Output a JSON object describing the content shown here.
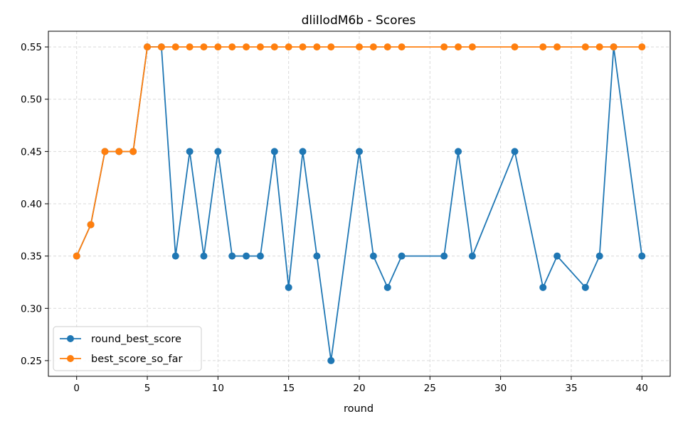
{
  "chart_data": {
    "type": "line",
    "title": "dliIlodM6b - Scores",
    "xlabel": "round",
    "ylabel": "",
    "xlim": [
      -2,
      42
    ],
    "ylim": [
      0.235,
      0.565
    ],
    "xticks": [
      0,
      5,
      10,
      15,
      20,
      25,
      30,
      35,
      40
    ],
    "yticks": [
      0.25,
      0.3,
      0.35,
      0.4,
      0.45,
      0.5,
      0.55
    ],
    "xtick_labels": [
      "0",
      "5",
      "10",
      "15",
      "20",
      "25",
      "30",
      "35",
      "40"
    ],
    "ytick_labels": [
      "0.25",
      "0.30",
      "0.35",
      "0.40",
      "0.45",
      "0.50",
      "0.55"
    ],
    "grid": true,
    "legend_position": "lower-left",
    "series": [
      {
        "name": "round_best_score",
        "color": "#1f77b4",
        "x": [
          0,
          1,
          2,
          3,
          4,
          5,
          6,
          7,
          8,
          9,
          10,
          11,
          12,
          13,
          14,
          15,
          16,
          17,
          18,
          20,
          21,
          22,
          23,
          26,
          27,
          28,
          31,
          33,
          34,
          36,
          37,
          38,
          40
        ],
        "y": [
          0.35,
          0.38,
          0.45,
          0.45,
          0.45,
          0.55,
          0.55,
          0.35,
          0.45,
          0.35,
          0.45,
          0.35,
          0.35,
          0.35,
          0.45,
          0.32,
          0.45,
          0.35,
          0.25,
          0.45,
          0.35,
          0.32,
          0.35,
          0.35,
          0.45,
          0.35,
          0.45,
          0.32,
          0.35,
          0.32,
          0.35,
          0.55,
          0.35
        ]
      },
      {
        "name": "best_score_so_far",
        "color": "#ff7f0e",
        "x": [
          0,
          1,
          2,
          3,
          4,
          5,
          6,
          7,
          8,
          9,
          10,
          11,
          12,
          13,
          14,
          15,
          16,
          17,
          18,
          20,
          21,
          22,
          23,
          26,
          27,
          28,
          31,
          33,
          34,
          36,
          37,
          38,
          40
        ],
        "y": [
          0.35,
          0.38,
          0.45,
          0.45,
          0.45,
          0.55,
          0.55,
          0.55,
          0.55,
          0.55,
          0.55,
          0.55,
          0.55,
          0.55,
          0.55,
          0.55,
          0.55,
          0.55,
          0.55,
          0.55,
          0.55,
          0.55,
          0.55,
          0.55,
          0.55,
          0.55,
          0.55,
          0.55,
          0.55,
          0.55,
          0.55,
          0.55,
          0.55
        ]
      }
    ]
  }
}
